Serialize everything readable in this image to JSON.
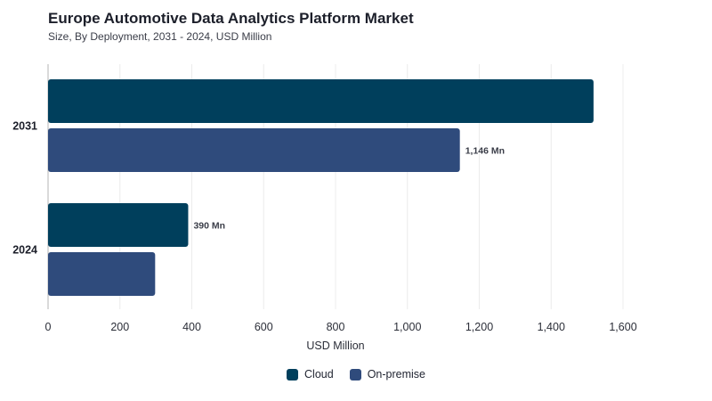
{
  "title": "Europe Automotive Data Analytics Platform Market",
  "subtitle": "Size, By Deployment, 2031 - 2024, USD Million",
  "colors": {
    "cloud": "#003f5c",
    "onpremise": "#2f4b7c"
  },
  "chart_data": {
    "type": "bar",
    "orientation": "horizontal",
    "categories": [
      "2031",
      "2024"
    ],
    "series": [
      {
        "name": "Cloud",
        "values": [
          1518,
          390
        ],
        "labels": [
          "",
          "390 Mn"
        ]
      },
      {
        "name": "On-premise",
        "values": [
          1146,
          298
        ],
        "labels": [
          "1,146 Mn",
          ""
        ]
      }
    ],
    "xlabel": "USD Million",
    "xlim": [
      0,
      1600
    ],
    "xticks": [
      "0",
      "200",
      "400",
      "600",
      "800",
      "1,000",
      "1,200",
      "1,400",
      "1,600"
    ],
    "grid": true,
    "legend": "bottom-center"
  }
}
